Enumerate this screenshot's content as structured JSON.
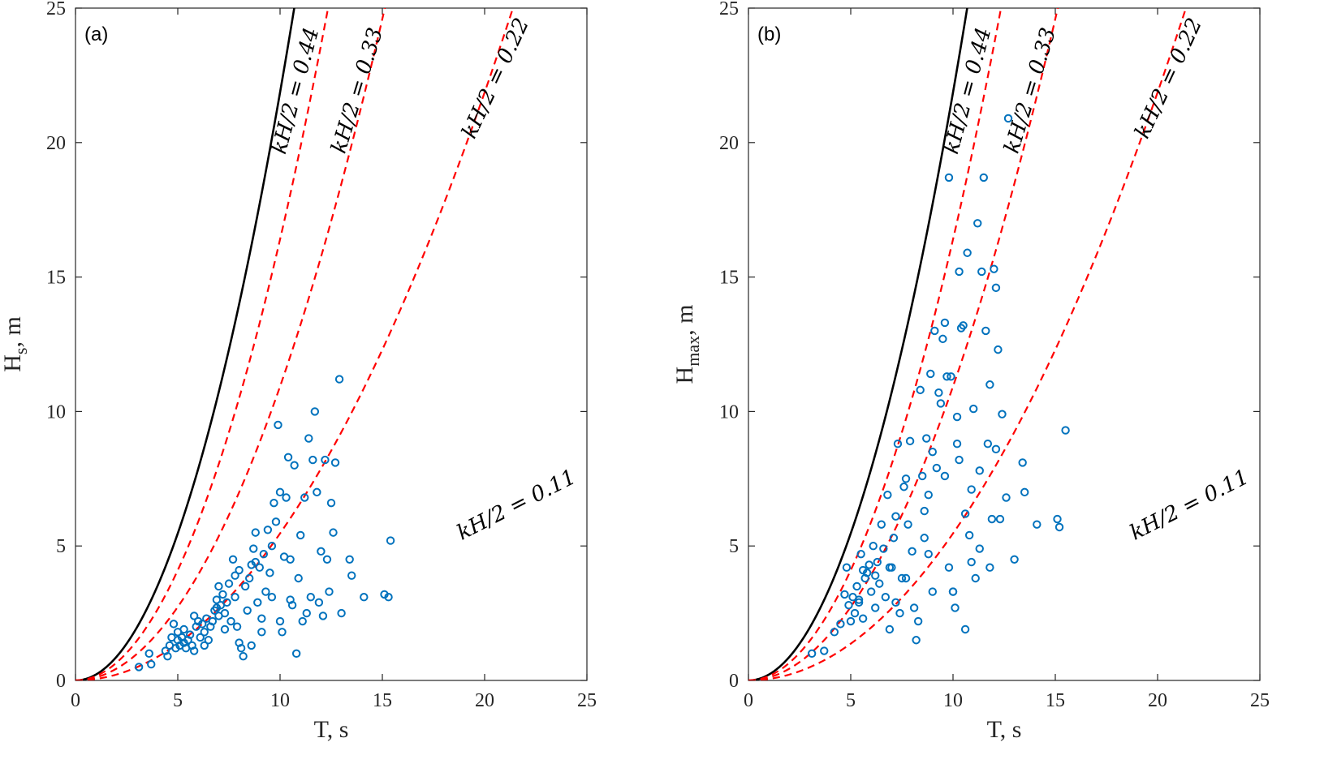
{
  "chart_data": [
    {
      "type": "scatter",
      "panel_label": "(a)",
      "xlabel": "T, s",
      "ylabel_main": "H",
      "ylabel_sub": "s",
      "ylabel_suffix": ", m",
      "xlim": [
        0,
        25
      ],
      "ylim": [
        0,
        25
      ],
      "xticks": [
        0,
        5,
        10,
        15,
        20,
        25
      ],
      "yticks": [
        0,
        5,
        10,
        15,
        20,
        25
      ],
      "grid": false,
      "marker_color": "#0072BD",
      "curves": [
        {
          "label": "kH/2 = 0.44",
          "steepness": 0.44,
          "style": "solid",
          "color": "#000000"
        },
        {
          "label": "kH/2 = 0.33",
          "steepness": 0.33,
          "style": "dashed",
          "color": "#FF0000"
        },
        {
          "label": "kH/2 = 0.22",
          "steepness": 0.22,
          "style": "dashed",
          "color": "#FF0000"
        },
        {
          "label": "kH/2 = 0.11",
          "steepness": 0.11,
          "style": "dashed",
          "color": "#FF0000"
        }
      ],
      "points": [
        [
          3.1,
          0.5
        ],
        [
          3.6,
          1.0
        ],
        [
          3.7,
          0.6
        ],
        [
          4.4,
          1.1
        ],
        [
          4.5,
          0.9
        ],
        [
          4.6,
          1.3
        ],
        [
          4.7,
          1.6
        ],
        [
          4.8,
          2.1
        ],
        [
          4.9,
          1.2
        ],
        [
          5.0,
          1.5
        ],
        [
          5.0,
          1.8
        ],
        [
          5.1,
          1.3
        ],
        [
          5.2,
          1.6
        ],
        [
          5.3,
          1.4
        ],
        [
          5.4,
          1.2
        ],
        [
          5.5,
          1.5
        ],
        [
          5.6,
          1.7
        ],
        [
          5.7,
          1.3
        ],
        [
          5.8,
          1.1
        ],
        [
          5.9,
          2.0
        ],
        [
          6.0,
          2.2
        ],
        [
          6.1,
          1.6
        ],
        [
          6.2,
          2.1
        ],
        [
          6.3,
          1.8
        ],
        [
          6.4,
          2.3
        ],
        [
          6.5,
          1.5
        ],
        [
          6.6,
          2.0
        ],
        [
          6.7,
          2.2
        ],
        [
          6.8,
          2.6
        ],
        [
          6.9,
          3.0
        ],
        [
          7.0,
          3.5
        ],
        [
          7.0,
          2.4
        ],
        [
          7.1,
          2.8
        ],
        [
          7.2,
          3.2
        ],
        [
          7.3,
          2.5
        ],
        [
          7.4,
          2.9
        ],
        [
          7.5,
          3.6
        ],
        [
          7.6,
          2.2
        ],
        [
          7.7,
          4.5
        ],
        [
          7.8,
          3.9
        ],
        [
          7.9,
          2.0
        ],
        [
          8.0,
          1.4
        ],
        [
          8.0,
          4.1
        ],
        [
          8.1,
          1.2
        ],
        [
          8.2,
          0.9
        ],
        [
          8.3,
          3.5
        ],
        [
          8.4,
          2.6
        ],
        [
          8.5,
          3.8
        ],
        [
          8.6,
          4.3
        ],
        [
          8.7,
          4.9
        ],
        [
          8.8,
          5.5
        ],
        [
          8.9,
          2.9
        ],
        [
          9.0,
          4.2
        ],
        [
          9.1,
          1.8
        ],
        [
          9.2,
          4.7
        ],
        [
          9.3,
          3.3
        ],
        [
          9.4,
          5.6
        ],
        [
          9.5,
          4.0
        ],
        [
          9.6,
          3.1
        ],
        [
          9.7,
          6.6
        ],
        [
          9.8,
          5.9
        ],
        [
          9.9,
          9.5
        ],
        [
          10.0,
          7.0
        ],
        [
          10.0,
          2.2
        ],
        [
          10.1,
          1.8
        ],
        [
          10.2,
          4.6
        ],
        [
          10.3,
          6.8
        ],
        [
          10.4,
          8.3
        ],
        [
          10.5,
          3.0
        ],
        [
          10.6,
          2.8
        ],
        [
          10.7,
          8.0
        ],
        [
          10.8,
          1.0
        ],
        [
          10.9,
          3.8
        ],
        [
          11.0,
          5.4
        ],
        [
          11.2,
          6.8
        ],
        [
          11.3,
          2.5
        ],
        [
          11.4,
          9.0
        ],
        [
          11.5,
          3.1
        ],
        [
          11.6,
          8.2
        ],
        [
          11.7,
          10.0
        ],
        [
          11.8,
          7.0
        ],
        [
          11.9,
          2.9
        ],
        [
          12.0,
          4.8
        ],
        [
          12.1,
          2.4
        ],
        [
          12.2,
          8.2
        ],
        [
          12.3,
          4.5
        ],
        [
          12.4,
          3.3
        ],
        [
          12.5,
          6.6
        ],
        [
          12.6,
          5.5
        ],
        [
          12.7,
          8.1
        ],
        [
          12.9,
          11.2
        ],
        [
          13.0,
          2.5
        ],
        [
          13.4,
          4.5
        ],
        [
          13.5,
          3.9
        ],
        [
          14.1,
          3.1
        ],
        [
          15.1,
          3.2
        ],
        [
          15.3,
          3.1
        ],
        [
          15.4,
          5.2
        ],
        [
          6.3,
          1.3
        ],
        [
          7.3,
          1.9
        ],
        [
          8.6,
          1.3
        ],
        [
          9.1,
          2.3
        ],
        [
          10.5,
          4.5
        ],
        [
          11.1,
          2.2
        ],
        [
          5.3,
          1.9
        ],
        [
          5.8,
          2.4
        ],
        [
          6.9,
          2.7
        ],
        [
          7.8,
          3.1
        ],
        [
          8.8,
          4.4
        ],
        [
          9.6,
          5.0
        ]
      ]
    },
    {
      "type": "scatter",
      "panel_label": "(b)",
      "xlabel": "T, s",
      "ylabel_main": "H",
      "ylabel_sub": "max",
      "ylabel_suffix": ", m",
      "xlim": [
        0,
        25
      ],
      "ylim": [
        0,
        25
      ],
      "xticks": [
        0,
        5,
        10,
        15,
        20,
        25
      ],
      "yticks": [
        0,
        5,
        10,
        15,
        20,
        25
      ],
      "grid": false,
      "marker_color": "#0072BD",
      "curves": [
        {
          "label": "kH/2 = 0.44",
          "steepness": 0.44,
          "style": "solid",
          "color": "#000000"
        },
        {
          "label": "kH/2 = 0.33",
          "steepness": 0.33,
          "style": "dashed",
          "color": "#FF0000"
        },
        {
          "label": "kH/2 = 0.22",
          "steepness": 0.22,
          "style": "dashed",
          "color": "#FF0000"
        },
        {
          "label": "kH/2 = 0.11",
          "steepness": 0.11,
          "style": "dashed",
          "color": "#FF0000"
        }
      ],
      "points": [
        [
          3.1,
          1.0
        ],
        [
          3.7,
          1.1
        ],
        [
          4.2,
          1.8
        ],
        [
          4.5,
          2.1
        ],
        [
          4.7,
          3.2
        ],
        [
          4.8,
          4.2
        ],
        [
          4.9,
          2.8
        ],
        [
          5.0,
          2.2
        ],
        [
          5.1,
          3.1
        ],
        [
          5.2,
          2.5
        ],
        [
          5.3,
          3.5
        ],
        [
          5.4,
          2.9
        ],
        [
          5.5,
          4.7
        ],
        [
          5.6,
          2.3
        ],
        [
          5.7,
          3.8
        ],
        [
          5.8,
          4.0
        ],
        [
          5.9,
          4.3
        ],
        [
          6.0,
          3.3
        ],
        [
          6.1,
          5.0
        ],
        [
          6.2,
          2.7
        ],
        [
          6.3,
          4.4
        ],
        [
          6.4,
          3.6
        ],
        [
          6.5,
          5.8
        ],
        [
          6.6,
          4.9
        ],
        [
          6.7,
          3.1
        ],
        [
          6.8,
          6.9
        ],
        [
          6.9,
          1.9
        ],
        [
          7.0,
          4.2
        ],
        [
          7.1,
          5.3
        ],
        [
          7.2,
          6.1
        ],
        [
          7.3,
          8.8
        ],
        [
          7.4,
          2.5
        ],
        [
          7.5,
          3.8
        ],
        [
          7.6,
          7.2
        ],
        [
          7.7,
          7.5
        ],
        [
          7.8,
          5.8
        ],
        [
          7.9,
          8.9
        ],
        [
          8.0,
          4.8
        ],
        [
          8.1,
          2.7
        ],
        [
          8.2,
          1.5
        ],
        [
          8.3,
          2.2
        ],
        [
          8.4,
          10.8
        ],
        [
          8.5,
          7.6
        ],
        [
          8.6,
          5.3
        ],
        [
          8.7,
          9.0
        ],
        [
          8.8,
          6.9
        ],
        [
          8.9,
          11.4
        ],
        [
          9.0,
          8.5
        ],
        [
          9.1,
          13.0
        ],
        [
          9.2,
          7.9
        ],
        [
          9.3,
          10.7
        ],
        [
          9.4,
          10.3
        ],
        [
          9.5,
          12.7
        ],
        [
          9.6,
          13.3
        ],
        [
          9.7,
          11.3
        ],
        [
          9.8,
          18.7
        ],
        [
          9.9,
          11.3
        ],
        [
          10.0,
          3.3
        ],
        [
          10.1,
          2.7
        ],
        [
          10.2,
          8.8
        ],
        [
          10.3,
          15.2
        ],
        [
          10.4,
          13.1
        ],
        [
          10.5,
          13.2
        ],
        [
          10.6,
          6.2
        ],
        [
          10.7,
          15.9
        ],
        [
          10.8,
          5.4
        ],
        [
          10.9,
          4.4
        ],
        [
          11.0,
          10.1
        ],
        [
          11.1,
          3.8
        ],
        [
          11.2,
          17.0
        ],
        [
          11.3,
          4.9
        ],
        [
          11.4,
          15.2
        ],
        [
          11.5,
          18.7
        ],
        [
          11.6,
          13.0
        ],
        [
          11.7,
          8.8
        ],
        [
          11.8,
          4.2
        ],
        [
          11.9,
          6.0
        ],
        [
          12.0,
          15.3
        ],
        [
          12.1,
          8.6
        ],
        [
          12.2,
          12.3
        ],
        [
          12.3,
          6.0
        ],
        [
          12.4,
          9.9
        ],
        [
          12.7,
          20.9
        ],
        [
          13.0,
          4.5
        ],
        [
          13.4,
          8.1
        ],
        [
          13.5,
          7.0
        ],
        [
          14.1,
          5.8
        ],
        [
          15.1,
          6.0
        ],
        [
          15.2,
          5.7
        ],
        [
          15.5,
          9.3
        ],
        [
          10.0,
          3.3
        ],
        [
          10.6,
          1.9
        ],
        [
          9.0,
          3.3
        ],
        [
          8.8,
          4.7
        ],
        [
          7.7,
          3.8
        ],
        [
          6.9,
          4.2
        ],
        [
          6.2,
          3.9
        ],
        [
          5.6,
          4.1
        ],
        [
          5.4,
          3.0
        ],
        [
          12.1,
          14.6
        ],
        [
          11.3,
          7.8
        ],
        [
          10.2,
          9.8
        ],
        [
          9.6,
          7.6
        ],
        [
          10.3,
          8.2
        ],
        [
          11.8,
          11.0
        ],
        [
          12.6,
          6.8
        ],
        [
          10.9,
          7.1
        ],
        [
          9.8,
          4.2
        ],
        [
          8.6,
          6.3
        ],
        [
          7.2,
          2.9
        ]
      ]
    }
  ]
}
